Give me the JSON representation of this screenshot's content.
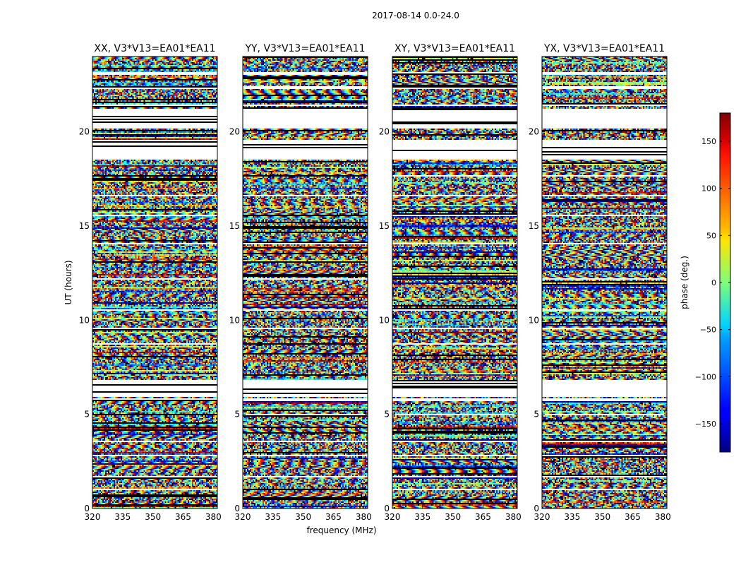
{
  "figure_title": "2017-08-14 0.0-24.0",
  "chart_data": {
    "type": "heatmap",
    "title": "2017-08-14 0.0-24.0",
    "xlabel": "frequency (MHz)",
    "ylabel": "UT (hours)",
    "xlim": [
      320,
      382
    ],
    "ylim": [
      0,
      24
    ],
    "x_ticks": [
      320,
      335,
      350,
      365,
      380
    ],
    "y_ticks": [
      0,
      5,
      10,
      15,
      20
    ],
    "panels": [
      {
        "title": "XX, V3*V13=EA01*EA11",
        "polarization": "XX"
      },
      {
        "title": "YY, V3*V13=EA01*EA11",
        "polarization": "YY"
      },
      {
        "title": "XY, V3*V13=EA01*EA11",
        "polarization": "XY"
      },
      {
        "title": "YX, V3*V13=EA01*EA11",
        "polarization": "YX"
      }
    ],
    "colorbar": {
      "label": "phase (deg.)",
      "range": [
        -180,
        180
      ],
      "ticks": [
        -150,
        -100,
        -50,
        0,
        50,
        100,
        150
      ],
      "colormap": "jet"
    },
    "flagged_ut_intervals": [
      [
        0.95,
        1.05
      ],
      [
        1.62,
        1.7
      ],
      [
        2.78,
        2.86
      ],
      [
        3.52,
        3.58
      ],
      [
        4.95,
        5.02
      ],
      [
        5.72,
        5.82
      ],
      [
        6.78,
        6.84
      ],
      [
        6.84,
        5.95
      ],
      [
        8.72,
        8.8
      ],
      [
        9.52,
        9.6
      ],
      [
        10.5,
        10.58
      ],
      [
        12.12,
        12.2
      ],
      [
        14.02,
        14.1
      ],
      [
        15.52,
        15.58
      ],
      [
        16.55,
        16.62
      ],
      [
        17.62,
        17.7
      ],
      [
        18.5,
        19.4
      ],
      [
        19.4,
        19.6
      ],
      [
        20.2,
        21.2
      ],
      [
        21.4,
        21.45
      ],
      [
        22.3,
        22.4
      ],
      [
        23.05,
        23.15
      ]
    ]
  }
}
